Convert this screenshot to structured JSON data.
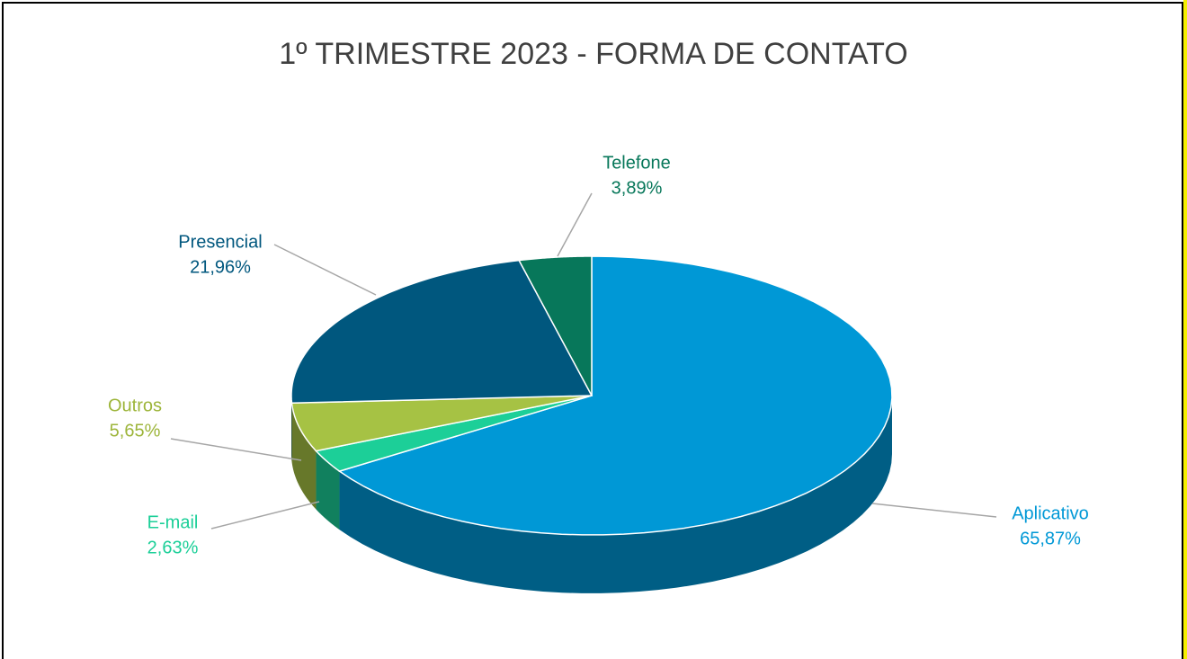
{
  "chart_data": {
    "type": "pie",
    "title": "1º TRIMESTRE 2023 - FORMA DE CONTATO",
    "categories": [
      "Aplicativo",
      "E-mail",
      "Outros",
      "Presencial",
      "Telefone"
    ],
    "values": [
      65.87,
      2.63,
      5.65,
      21.96,
      3.89
    ],
    "value_labels": [
      "65,87%",
      "2,63%",
      "5,65%",
      "21,96%",
      "3,89%"
    ],
    "colors": [
      "#0098d6",
      "#1ccf98",
      "#a6c244",
      "#00577e",
      "#07775a"
    ]
  }
}
